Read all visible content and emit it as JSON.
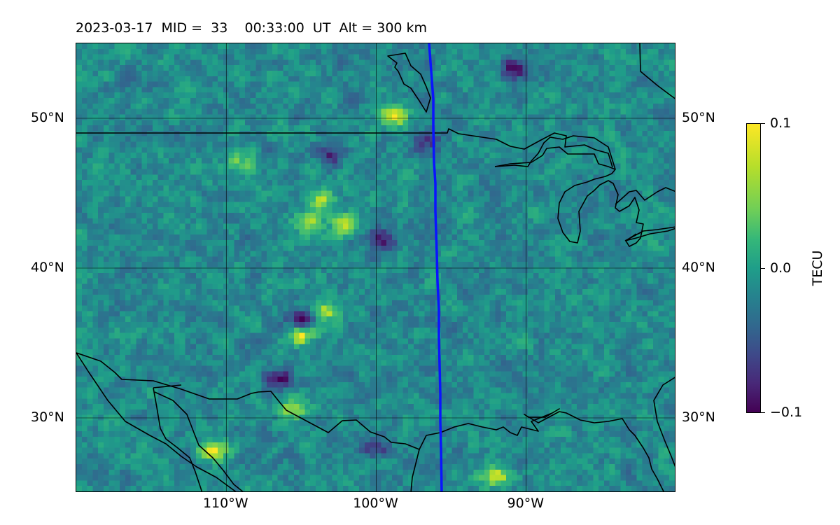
{
  "title": "2023-03-17  MID =  33    00:33:00  UT  Alt = 300 km",
  "map": {
    "lon_range": [
      -120,
      -80
    ],
    "lat_range": [
      25,
      55
    ],
    "lat_ticks": [
      {
        "value": 30,
        "label": "30°N"
      },
      {
        "value": 40,
        "label": "40°N"
      },
      {
        "value": 50,
        "label": "50°N"
      }
    ],
    "lon_ticks": [
      {
        "value": -110,
        "label": "110°W"
      },
      {
        "value": -100,
        "label": "100°W"
      },
      {
        "value": -90,
        "label": "90°W"
      }
    ],
    "colors": {
      "coastline": "#000000",
      "terminator": "#0a14ff",
      "grid": "#000000"
    },
    "hotspots": [
      {
        "lon": -110.8,
        "lat": 27.8,
        "value": 0.1
      },
      {
        "lon": -98.8,
        "lat": 50.2,
        "value": 0.1
      },
      {
        "lon": -102.0,
        "lat": 42.8,
        "value": 0.08
      },
      {
        "lon": -104.5,
        "lat": 43.0,
        "value": 0.07
      },
      {
        "lon": -103.5,
        "lat": 44.5,
        "value": 0.07
      },
      {
        "lon": -103.4,
        "lat": 37.0,
        "value": 0.08
      },
      {
        "lon": -105.0,
        "lat": 35.5,
        "value": 0.1
      },
      {
        "lon": -92.0,
        "lat": 26.0,
        "value": 0.1
      },
      {
        "lon": -109.0,
        "lat": 47.0,
        "value": 0.05
      },
      {
        "lon": -105.5,
        "lat": 30.5,
        "value": 0.09
      }
    ],
    "coldspots": [
      {
        "lon": -90.8,
        "lat": 53.3,
        "value": -0.09
      },
      {
        "lon": -105.0,
        "lat": 36.5,
        "value": -0.1
      },
      {
        "lon": -106.5,
        "lat": 32.5,
        "value": -0.09
      },
      {
        "lon": -99.5,
        "lat": 42.0,
        "value": -0.08
      },
      {
        "lon": -96.5,
        "lat": 48.5,
        "value": -0.07
      },
      {
        "lon": -103.0,
        "lat": 47.5,
        "value": -0.07
      },
      {
        "lon": -100.0,
        "lat": 28.0,
        "value": -0.07
      }
    ]
  },
  "colorbar": {
    "label": "TECU",
    "max_label": "0.1",
    "mid_label": "0.0",
    "min_label": "−0.1",
    "range": [
      -0.1,
      0.1
    ],
    "colormap": "viridis"
  }
}
